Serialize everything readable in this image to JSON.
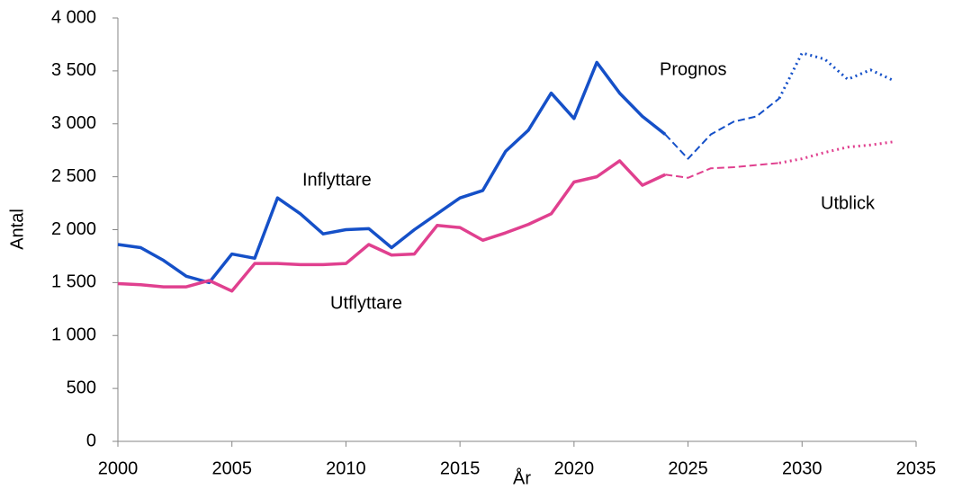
{
  "chart_data": {
    "type": "line",
    "x": [
      2000,
      2001,
      2002,
      2003,
      2004,
      2005,
      2006,
      2007,
      2008,
      2009,
      2010,
      2011,
      2012,
      2013,
      2014,
      2015,
      2016,
      2017,
      2018,
      2019,
      2020,
      2021,
      2022,
      2023,
      2024,
      2025,
      2026,
      2027,
      2028,
      2029,
      2030,
      2031,
      2032,
      2033,
      2034
    ],
    "series": [
      {
        "name": "Inflyttare",
        "color": "#1550c8",
        "values": [
          1860,
          1830,
          1710,
          1560,
          1500,
          1770,
          1730,
          2300,
          2150,
          1960,
          2000,
          2010,
          1830,
          2000,
          2150,
          2300,
          2370,
          2740,
          2940,
          3290,
          3050,
          3580,
          3290,
          3070,
          2900,
          2670,
          2900,
          3020,
          3070,
          3240,
          3670,
          3610,
          3420,
          3510,
          3410
        ]
      },
      {
        "name": "Utflyttare",
        "color": "#e0408f",
        "values": [
          1490,
          1480,
          1460,
          1460,
          1520,
          1420,
          1680,
          1680,
          1670,
          1670,
          1680,
          1860,
          1760,
          1770,
          2040,
          2020,
          1900,
          1970,
          2050,
          2150,
          2450,
          2500,
          2650,
          2420,
          2520,
          2490,
          2580,
          2590,
          2610,
          2630,
          2670,
          2730,
          2780,
          2800,
          2830
        ]
      }
    ],
    "segments": [
      {
        "style": "solid",
        "end": 2024
      },
      {
        "style": "dashed",
        "end": 2029
      },
      {
        "style": "dotted",
        "end": 2034
      }
    ],
    "annotations": [
      "Prognos",
      "Utblick"
    ],
    "xlabel": "År",
    "ylabel": "Antal",
    "xlim": [
      2000,
      2035
    ],
    "xticks": [
      2000,
      2005,
      2010,
      2015,
      2020,
      2025,
      2030,
      2035
    ],
    "ylim": [
      0,
      4000
    ],
    "yticks": [
      0,
      500,
      {
        "value": 1000,
        "label": "1 000"
      },
      {
        "value": 1500,
        "label": "1 500"
      },
      {
        "value": 2000,
        "label": "2 000"
      },
      {
        "value": 2500,
        "label": "2 500"
      },
      {
        "value": 3000,
        "label": "3 000"
      },
      {
        "value": 3500,
        "label": "3 500"
      },
      {
        "value": 4000,
        "label": "4 000"
      }
    ],
    "grid": false
  }
}
